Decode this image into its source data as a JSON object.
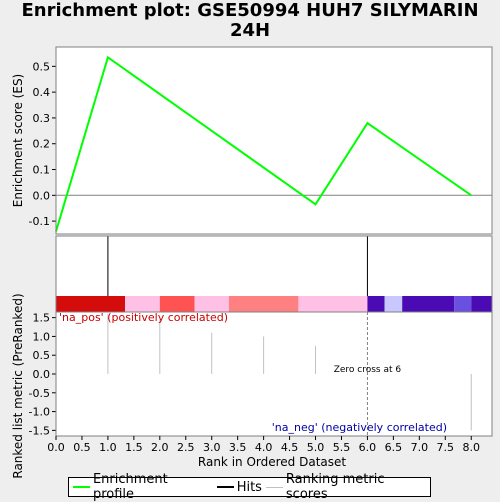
{
  "title": "Enrichment plot: GSE50994 HUH7 SILYMARIN 24H",
  "chart_data": {
    "type": "line",
    "title": "Enrichment plot: GSE50994 HUH7 SILYMARIN 24H",
    "xlabel": "Rank in Ordered Dataset",
    "es_panel": {
      "ylabel": "Enrichment score (ES)",
      "ylim": [
        -0.15,
        0.575
      ],
      "yticks": [
        "0.5",
        "0.4",
        "0.3",
        "0.2",
        "0.1",
        "0.0",
        "-0.1"
      ],
      "ytick_values": [
        0.5,
        0.4,
        0.3,
        0.2,
        0.1,
        0.0,
        -0.1
      ],
      "series": [
        {
          "name": "Enrichment profile",
          "color": "#00ff00",
          "x": [
            0,
            1,
            5,
            6,
            8
          ],
          "y": [
            -0.14,
            0.535,
            -0.035,
            0.28,
            0.0
          ]
        }
      ],
      "zero_line": 0.0
    },
    "hits_panel": {
      "hits": [
        1,
        6
      ]
    },
    "color_bar": [
      {
        "from": 0.0,
        "to": 1.33,
        "color": "#d40c0c"
      },
      {
        "from": 1.33,
        "to": 2.0,
        "color": "#ffc0e6"
      },
      {
        "from": 2.0,
        "to": 2.67,
        "color": "#ff5353"
      },
      {
        "from": 2.67,
        "to": 3.33,
        "color": "#ffc0e6"
      },
      {
        "from": 3.33,
        "to": 4.67,
        "color": "#ff8080"
      },
      {
        "from": 4.67,
        "to": 6.0,
        "color": "#ffc0e6"
      },
      {
        "from": 6.0,
        "to": 6.33,
        "color": "#4a0ab4"
      },
      {
        "from": 6.33,
        "to": 6.67,
        "color": "#c8c8ff"
      },
      {
        "from": 6.67,
        "to": 7.67,
        "color": "#4a0ab4"
      },
      {
        "from": 7.67,
        "to": 8.0,
        "color": "#6a50e0"
      },
      {
        "from": 8.0,
        "to": 8.4,
        "color": "#4a0ab4"
      }
    ],
    "metric_panel": {
      "ylabel": "Ranked list metric (PreRanked)",
      "ylim": [
        -1.65,
        1.65
      ],
      "yticks": [
        "1.5",
        "1.0",
        "0.5",
        "0.0",
        "-0.5",
        "-1.0",
        "-1.5"
      ],
      "ytick_values": [
        1.5,
        1.0,
        0.5,
        0.0,
        -0.5,
        -1.0,
        -1.5
      ],
      "bars": [
        {
          "x": 1,
          "value": 1.6
        },
        {
          "x": 2,
          "value": 1.45
        },
        {
          "x": 3,
          "value": 1.1
        },
        {
          "x": 4,
          "value": 1.0
        },
        {
          "x": 5,
          "value": 0.75
        },
        {
          "x": 7,
          "value": 0.0
        },
        {
          "x": 8,
          "value": -1.5
        }
      ],
      "zero_cross": 6,
      "annotations": {
        "pos_label": "'na_pos' (positively correlated)",
        "neg_label": "'na_neg' (negatively correlated)",
        "zero_cross_label": "Zero cross at 6"
      }
    },
    "xlim": [
      0,
      8.4
    ],
    "xticks": [
      "0.0",
      "0.5",
      "1.0",
      "1.5",
      "2.0",
      "2.5",
      "3.0",
      "3.5",
      "4.0",
      "4.5",
      "5.0",
      "5.5",
      "6.0",
      "6.5",
      "7.0",
      "7.5",
      "8.0"
    ],
    "xtick_values": [
      0,
      0.5,
      1,
      1.5,
      2,
      2.5,
      3,
      3.5,
      4,
      4.5,
      5,
      5.5,
      6,
      6.5,
      7,
      7.5,
      8
    ]
  },
  "legend": {
    "items": [
      {
        "label": "Enrichment profile",
        "color": "#00ff00"
      },
      {
        "label": "Hits",
        "color": "#000000"
      },
      {
        "label": "Ranking metric scores",
        "color": "#c0c0c0"
      }
    ]
  }
}
